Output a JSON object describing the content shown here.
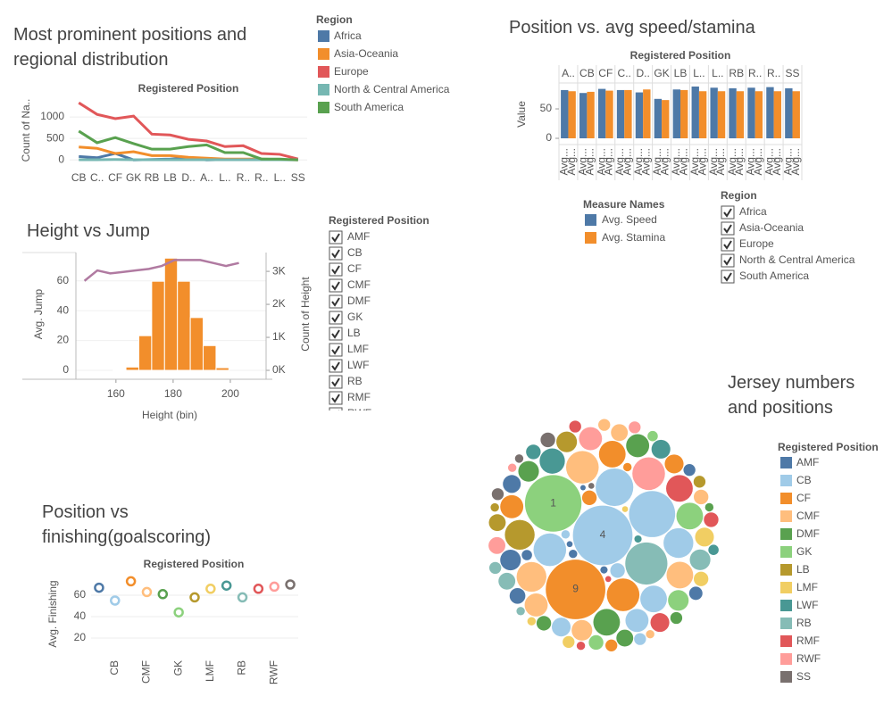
{
  "chart_data": [
    {
      "type": "line",
      "title": "Most prominent positions and regional distribution",
      "x_title": "Registered Position",
      "y_title": "Count of Na..",
      "legend_title": "Region",
      "categories": [
        "CB",
        "C..",
        "CF",
        "GK",
        "RB",
        "LB",
        "D..",
        "A..",
        "L..",
        "R..",
        "R..",
        "L..",
        "SS"
      ],
      "series": [
        {
          "name": "Africa",
          "color": "#4e79a7",
          "values": [
            80,
            50,
            150,
            0,
            10,
            20,
            40,
            0,
            10,
            10,
            5,
            5,
            0
          ]
        },
        {
          "name": "Asia-Oceania",
          "color": "#f28e2b",
          "values": [
            300,
            270,
            150,
            190,
            100,
            100,
            60,
            40,
            20,
            20,
            20,
            10,
            0
          ]
        },
        {
          "name": "Europe",
          "color": "#e15759",
          "values": [
            1330,
            1060,
            960,
            1020,
            600,
            580,
            480,
            440,
            310,
            330,
            150,
            130,
            20
          ]
        },
        {
          "name": "North & Central America",
          "color": "#76b7b2",
          "values": [
            5,
            5,
            10,
            5,
            5,
            5,
            5,
            5,
            5,
            5,
            5,
            5,
            5
          ]
        },
        {
          "name": "South America",
          "color": "#59a14f",
          "values": [
            670,
            400,
            520,
            380,
            250,
            250,
            310,
            350,
            170,
            170,
            20,
            20,
            0
          ]
        }
      ],
      "ylim": [
        -100,
        1500
      ],
      "yticks": [
        0,
        500,
        1000
      ],
      "grid": true
    },
    {
      "type": "bar",
      "title": "Position vs. avg speed/stamina",
      "x_title": "Registered Position",
      "y_title": "Value",
      "bar_label": "Avg...",
      "legend_title": "Measure Names",
      "categories": [
        "A..",
        "CB",
        "CF",
        "C..",
        "D..",
        "GK",
        "LB",
        "L..",
        "L..",
        "RB",
        "R..",
        "R..",
        "SS"
      ],
      "series": [
        {
          "name": "Avg. Speed",
          "color": "#4e79a7",
          "values": [
            82,
            77,
            84,
            82,
            78,
            67,
            83,
            88,
            86,
            85,
            86,
            87,
            85
          ]
        },
        {
          "name": "Avg. Stamina",
          "color": "#f28e2b",
          "values": [
            80,
            79,
            81,
            82,
            83,
            65,
            82,
            80,
            80,
            80,
            80,
            80,
            80
          ]
        }
      ],
      "ylim": [
        0,
        94
      ],
      "yticks": [
        0,
        50
      ],
      "filter": {
        "title": "Region",
        "items": [
          "Africa",
          "Asia-Oceania",
          "Europe",
          "North & Central America",
          "South America"
        ]
      }
    },
    {
      "type": "histogram",
      "title": "Height vs Jump",
      "x_title": "Height (bin)",
      "y_title": "Avg. Jump",
      "y2_title": "Count of Height",
      "bins": [
        159,
        163.5,
        168,
        172.5,
        177,
        181.5,
        186,
        190.5,
        195,
        199.5
      ],
      "values": [
        20,
        100,
        1050,
        2700,
        3400,
        2700,
        1600,
        750,
        80
      ],
      "color": "#f28e2b",
      "axis": "y2",
      "line_x": [
        149,
        153.5,
        158,
        162.5,
        167,
        171.5,
        176,
        180.5,
        185,
        189.5,
        194,
        198.5,
        203
      ],
      "line_values": [
        60,
        67,
        65,
        66,
        67,
        68,
        70,
        74,
        74,
        74,
        72,
        70,
        72
      ],
      "line_color": "#b07aa1",
      "xlim": [
        146,
        212.5
      ],
      "xticks": [
        160,
        180,
        200
      ],
      "ylim": [
        -6,
        79
      ],
      "yticks": [
        0,
        20,
        40,
        60
      ],
      "y2lim": [
        -270,
        3570
      ],
      "y2ticks": [
        {
          "value": 0,
          "label": "0K"
        },
        {
          "value": 1000,
          "label": "1K"
        },
        {
          "value": 2000,
          "label": "2K"
        },
        {
          "value": 3000,
          "label": "3K"
        }
      ],
      "grid": true,
      "filter": {
        "title": "Registered Position",
        "items": [
          "AMF",
          "CB",
          "CF",
          "CMF",
          "DMF",
          "GK",
          "LB",
          "LMF",
          "LWF",
          "RB",
          "RMF",
          "RWF"
        ]
      }
    },
    {
      "type": "dot",
      "title": "Position vs finishing(goalscoring)",
      "x_title": "Registered Position",
      "y_title": "Avg. Finishing",
      "categories": [
        null,
        "CB",
        null,
        "CMF",
        null,
        "GK",
        null,
        "LMF",
        null,
        "RB",
        null,
        "RWF",
        null
      ],
      "values": [
        67,
        55,
        73,
        63,
        61,
        44,
        58,
        66,
        69,
        58,
        66,
        68,
        70
      ],
      "colors": [
        "#4e79a7",
        "#a0cbe8",
        "#f28e2b",
        "#ffbe7d",
        "#59a14f",
        "#8cd17d",
        "#b6992d",
        "#f1ce63",
        "#499894",
        "#86bcb6",
        "#e15759",
        "#ff9d9a",
        "#79706e"
      ],
      "ylim": [
        5,
        80
      ],
      "yticks": [
        20,
        40,
        60
      ],
      "grid": true
    },
    {
      "type": "bubble",
      "title": "Jersey numbers and positions",
      "legend_title": "Registered Position",
      "series": [
        {
          "name": "AMF",
          "color": "#4e79a7",
          "values": [
            120,
            90,
            70,
            50,
            40,
            30,
            20,
            15,
            10,
            8
          ],
          "labels": [
            null,
            null,
            null,
            null,
            null,
            null,
            null,
            null,
            null,
            null
          ]
        },
        {
          "name": "CB",
          "color": "#a0cbe8",
          "values": [
            1000,
            600,
            400,
            300,
            250,
            200,
            150,
            100,
            60,
            40,
            20
          ],
          "labels": [
            "4",
            null,
            null,
            null,
            null,
            null,
            null,
            null,
            null,
            null,
            null
          ]
        },
        {
          "name": "CF",
          "color": "#f28e2b",
          "values": [
            1000,
            300,
            200,
            150,
            100,
            60,
            40,
            20
          ],
          "labels": [
            "9",
            null,
            null,
            null,
            null,
            null,
            null,
            null
          ]
        },
        {
          "name": "CMF",
          "color": "#ffbe7d",
          "values": [
            300,
            250,
            200,
            150,
            120,
            80,
            60,
            40,
            20
          ],
          "labels": [
            null,
            null,
            null,
            null,
            null,
            null,
            null,
            null,
            null
          ]
        },
        {
          "name": "DMF",
          "color": "#59a14f",
          "values": [
            200,
            150,
            120,
            80,
            60,
            40,
            20
          ],
          "labels": [
            null,
            null,
            null,
            null,
            null,
            null,
            null
          ]
        },
        {
          "name": "GK",
          "color": "#8cd17d",
          "values": [
            900,
            200,
            120,
            60,
            30
          ],
          "labels": [
            "1",
            null,
            null,
            null,
            null
          ]
        },
        {
          "name": "LB",
          "color": "#b6992d",
          "values": [
            250,
            120,
            80,
            40,
            20
          ],
          "labels": [
            null,
            null,
            null,
            null,
            null
          ]
        },
        {
          "name": "LMF",
          "color": "#f1ce63",
          "values": [
            100,
            60,
            40,
            20,
            10
          ],
          "labels": [
            null,
            null,
            null,
            null,
            null
          ]
        },
        {
          "name": "LWF",
          "color": "#499894",
          "values": [
            180,
            100,
            60,
            30,
            15
          ],
          "labels": [
            null,
            null,
            null,
            null,
            null
          ]
        },
        {
          "name": "RB",
          "color": "#86bcb6",
          "values": [
            500,
            120,
            80,
            40,
            20
          ],
          "labels": [
            null,
            null,
            null,
            null,
            null
          ]
        },
        {
          "name": "RMF",
          "color": "#e15759",
          "values": [
            200,
            100,
            60,
            40,
            20,
            10
          ],
          "labels": [
            null,
            null,
            null,
            null,
            null,
            null
          ]
        },
        {
          "name": "RWF",
          "color": "#ff9d9a",
          "values": [
            300,
            150,
            80,
            40,
            20
          ],
          "labels": [
            null,
            null,
            null,
            null,
            null
          ]
        },
        {
          "name": "SS",
          "color": "#79706e",
          "values": [
            60,
            40,
            20,
            10
          ],
          "labels": [
            null,
            null,
            null,
            null
          ]
        }
      ]
    }
  ]
}
